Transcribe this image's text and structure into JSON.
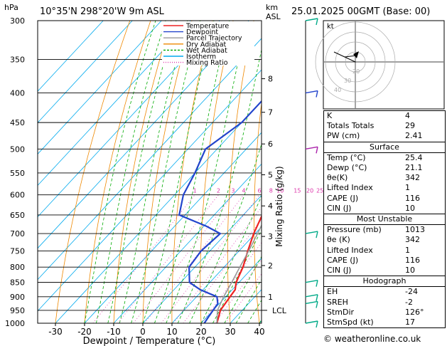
{
  "header": {
    "station": "10°35'N 298°20'W 9m ASL",
    "hpa": "hPa",
    "km": "km",
    "asl": "ASL",
    "datetime": "25.01.2025 00GMT (Base: 00)"
  },
  "legend": [
    {
      "label": "Temperature",
      "color": "#ee2222"
    },
    {
      "label": "Dewpoint",
      "color": "#2244cc"
    },
    {
      "label": "Parcel Trajectory",
      "color": "#999999"
    },
    {
      "label": "Dry Adiabat",
      "color": "#ee8800"
    },
    {
      "label": "Wet Adiabat",
      "color": "#00aa00"
    },
    {
      "label": "Isotherm",
      "color": "#00aaee"
    },
    {
      "label": "Mixing Ratio",
      "color": "#dd33aa"
    }
  ],
  "chart_data": {
    "type": "line",
    "xlabel": "Dewpoint / Temperature (°C)",
    "ylabel": "Mixing Ratio (g/kg)",
    "pressure_ticks": [
      300,
      350,
      400,
      450,
      500,
      550,
      600,
      650,
      700,
      750,
      800,
      850,
      900,
      950,
      1000
    ],
    "temp_ticks": [
      -30,
      -20,
      -10,
      0,
      10,
      20,
      30,
      40
    ],
    "xlim": [
      -35,
      40
    ],
    "ylim": [
      1000,
      300
    ],
    "km_ticks": [
      {
        "km": "1",
        "p": 900
      },
      {
        "km": "2",
        "p": 795
      },
      {
        "km": "3",
        "p": 708
      },
      {
        "km": "4",
        "p": 627
      },
      {
        "km": "5",
        "p": 554
      },
      {
        "km": "6",
        "p": 490
      },
      {
        "km": "7",
        "p": 432
      },
      {
        "km": "8",
        "p": 378
      }
    ],
    "lcl": {
      "label": "LCL",
      "p": 950
    },
    "mixing_ratio_labels": [
      "1",
      "2",
      "3",
      "4",
      "6",
      "8",
      "10",
      "15",
      "20",
      "25"
    ],
    "mixing_ratio_values": [
      1,
      2,
      3,
      4,
      6,
      8,
      10,
      15,
      20,
      25
    ],
    "series": [
      {
        "name": "Temperature",
        "color": "#ee2222",
        "points": [
          [
            1000,
            25.4
          ],
          [
            975,
            24
          ],
          [
            950,
            22.5
          ],
          [
            925,
            22
          ],
          [
            900,
            21.5
          ],
          [
            875,
            21
          ],
          [
            850,
            19
          ],
          [
            800,
            16.5
          ],
          [
            750,
            13
          ],
          [
            700,
            9.5
          ],
          [
            650,
            6.5
          ],
          [
            600,
            3.2
          ],
          [
            550,
            -0.5
          ],
          [
            500,
            -5
          ],
          [
            450,
            -10
          ],
          [
            400,
            -16
          ],
          [
            350,
            -23
          ],
          [
            300,
            -31
          ]
        ]
      },
      {
        "name": "Dewpoint",
        "color": "#2244cc",
        "points": [
          [
            1000,
            21.1
          ],
          [
            975,
            20.5
          ],
          [
            950,
            20
          ],
          [
            925,
            19.5
          ],
          [
            900,
            17
          ],
          [
            875,
            9
          ],
          [
            850,
            3
          ],
          [
            800,
            -2
          ],
          [
            750,
            -3
          ],
          [
            700,
            -2
          ],
          [
            680,
            -9
          ],
          [
            650,
            -22
          ],
          [
            600,
            -27
          ],
          [
            550,
            -30
          ],
          [
            500,
            -34
          ],
          [
            450,
            -30
          ],
          [
            400,
            -30
          ],
          [
            350,
            -30
          ],
          [
            320,
            -20
          ],
          [
            300,
            -14
          ]
        ]
      },
      {
        "name": "Parcel Trajectory",
        "color": "#999999",
        "points": [
          [
            1000,
            25.4
          ],
          [
            950,
            21.5
          ],
          [
            900,
            19.3
          ],
          [
            850,
            17.5
          ],
          [
            800,
            15.4
          ],
          [
            750,
            13.3
          ],
          [
            700,
            10.8
          ],
          [
            650,
            8
          ],
          [
            600,
            4.8
          ],
          [
            550,
            1.3
          ],
          [
            500,
            -2.8
          ],
          [
            450,
            -7.8
          ],
          [
            400,
            -13.6
          ],
          [
            350,
            -20.5
          ],
          [
            300,
            -29
          ]
        ]
      }
    ]
  },
  "hodograph": {
    "label": "kt",
    "rings": [
      "20",
      "30",
      "40"
    ]
  },
  "indices": [
    {
      "label": "K",
      "value": "4"
    },
    {
      "label": "Totals Totals",
      "value": "29"
    },
    {
      "label": "PW (cm)",
      "value": "2.41"
    }
  ],
  "surface": {
    "title": "Surface",
    "rows": [
      {
        "label": "Temp (°C)",
        "value": "25.4"
      },
      {
        "label": "Dewp (°C)",
        "value": "21.1"
      },
      {
        "label": "θe(K)",
        "value": "342"
      },
      {
        "label": "Lifted Index",
        "value": "1"
      },
      {
        "label": "CAPE (J)",
        "value": "116"
      },
      {
        "label": "CIN (J)",
        "value": "10"
      }
    ]
  },
  "most_unstable": {
    "title": "Most Unstable",
    "rows": [
      {
        "label": "Pressure (mb)",
        "value": "1013"
      },
      {
        "label": "θe (K)",
        "value": "342"
      },
      {
        "label": "Lifted Index",
        "value": "1"
      },
      {
        "label": "CAPE (J)",
        "value": "116"
      },
      {
        "label": "CIN (J)",
        "value": "10"
      }
    ]
  },
  "hodo_table": {
    "title": "Hodograph",
    "rows": [
      {
        "label": "EH",
        "value": "-24"
      },
      {
        "label": "SREH",
        "value": "-2"
      },
      {
        "label": "StmDir",
        "value": "126°"
      },
      {
        "label": "StmSpd (kt)",
        "value": "17"
      }
    ]
  },
  "footer": "© weatheronline.co.uk"
}
